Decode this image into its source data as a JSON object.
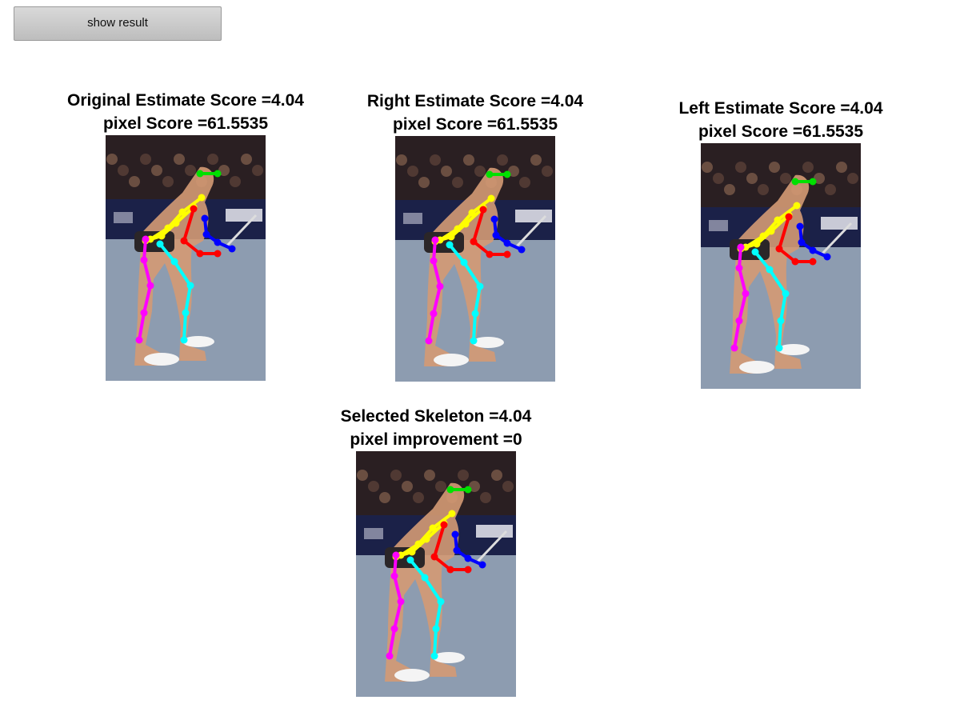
{
  "controls": {
    "show_result_label": "show result"
  },
  "panels": [
    {
      "title_line1": "Original Estimate Score =4.04",
      "title_line2": "pixel Score =61.5535"
    },
    {
      "title_line1": "Right Estimate Score =4.04",
      "title_line2": "pixel Score =61.5535"
    },
    {
      "title_line1": "Left Estimate Score =4.04",
      "title_line2": "pixel Score =61.5535"
    },
    {
      "title_line1": "Selected Skeleton =4.04",
      "title_line2": "pixel improvement =0"
    }
  ],
  "colors": {
    "head": "#00e000",
    "torso": "#ffff00",
    "right_arm": "#ff0000",
    "left_arm": "#0000ff",
    "right_leg": "#ff00ff",
    "left_leg": "#00ffff"
  }
}
